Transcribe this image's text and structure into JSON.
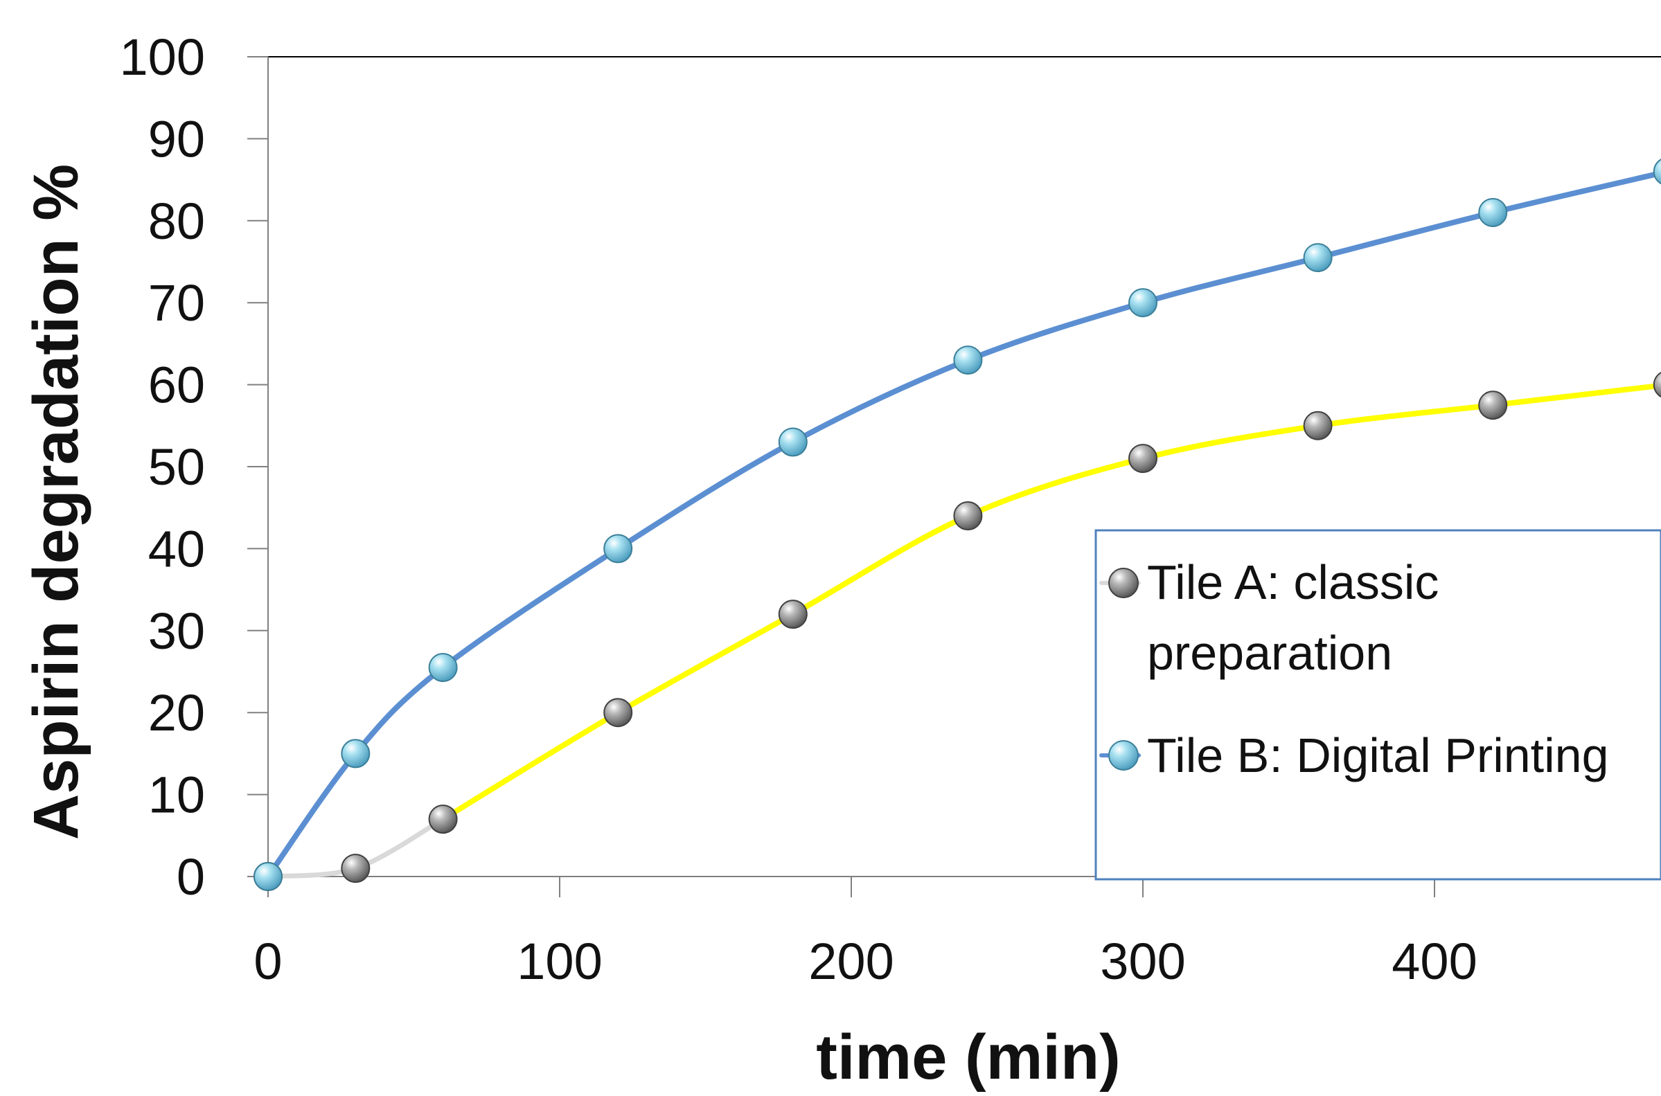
{
  "chart_data": {
    "type": "line",
    "title": "",
    "xlabel": "time (min)",
    "ylabel": "Aspirin degradation %",
    "xlim": [
      0,
      480
    ],
    "ylim": [
      0,
      100
    ],
    "xticks": [
      0,
      100,
      200,
      300,
      400
    ],
    "yticks": [
      0,
      10,
      20,
      30,
      40,
      50,
      60,
      70,
      80,
      90,
      100
    ],
    "grid": false,
    "legend_position": "right",
    "series": [
      {
        "name": "Tile A: classic preparation",
        "legend_lines": [
          "Tile A: classic",
          "preparation"
        ],
        "line_color": "#ffff00",
        "early_line_color": "#d9d9d9",
        "marker_color": "#808080",
        "x": [
          0,
          30,
          60,
          120,
          180,
          240,
          300,
          360,
          420,
          480
        ],
        "values": [
          0,
          1,
          7,
          20,
          32,
          44,
          51,
          55,
          57.5,
          60
        ]
      },
      {
        "name": "Tile B: Digital Printing",
        "legend_lines": [
          "Tile B: Digital Printing"
        ],
        "line_color": "#5b8fd2",
        "marker_color": "#8fd3e8",
        "x": [
          0,
          30,
          60,
          120,
          180,
          240,
          300,
          360,
          420,
          480
        ],
        "values": [
          0,
          15,
          25.5,
          40,
          53,
          63,
          70,
          75.5,
          81,
          86
        ]
      }
    ]
  },
  "colors": {
    "axis": "#808080",
    "legend_border": "#4f81bd",
    "text": "#111111"
  }
}
